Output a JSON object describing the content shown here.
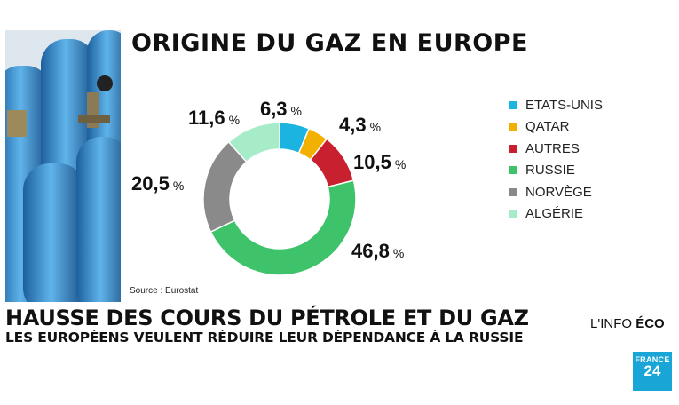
{
  "title": "ORIGINE DU GAZ EN EUROPE",
  "source": "Source :  Eurostat",
  "headline": "HAUSSE DES COURS DU PÉTROLE ET DU GAZ",
  "subheadline": "LES EUROPÉENS VEULENT RÉDUIRE LEUR DÉPENDANCE À LA RUSSIE",
  "show": {
    "prefix": "L'INFO ",
    "bold": "ÉCO"
  },
  "logo": {
    "line1": "FRANCE",
    "line2": "24"
  },
  "chart_data": {
    "type": "pie",
    "title": "ORIGINE DU GAZ EN EUROPE",
    "donut": true,
    "legend_position": "right",
    "unit": "%",
    "series": [
      {
        "name": "ETATS-UNIS",
        "value": 6.3,
        "label": "6,3",
        "color": "#1bb3e0"
      },
      {
        "name": "QATAR",
        "value": 4.3,
        "label": "4,3",
        "color": "#f2b100"
      },
      {
        "name": "AUTRES",
        "value": 10.5,
        "label": "10,5",
        "color": "#c8202f"
      },
      {
        "name": "RUSSIE",
        "value": 46.8,
        "label": "46,8",
        "color": "#3ec26a"
      },
      {
        "name": "NORVÈGE",
        "value": 20.5,
        "label": "20,5",
        "color": "#8a8a8a"
      },
      {
        "name": "ALGÉRIE",
        "value": 11.6,
        "label": "11,6",
        "color": "#a6ecc9"
      }
    ]
  }
}
